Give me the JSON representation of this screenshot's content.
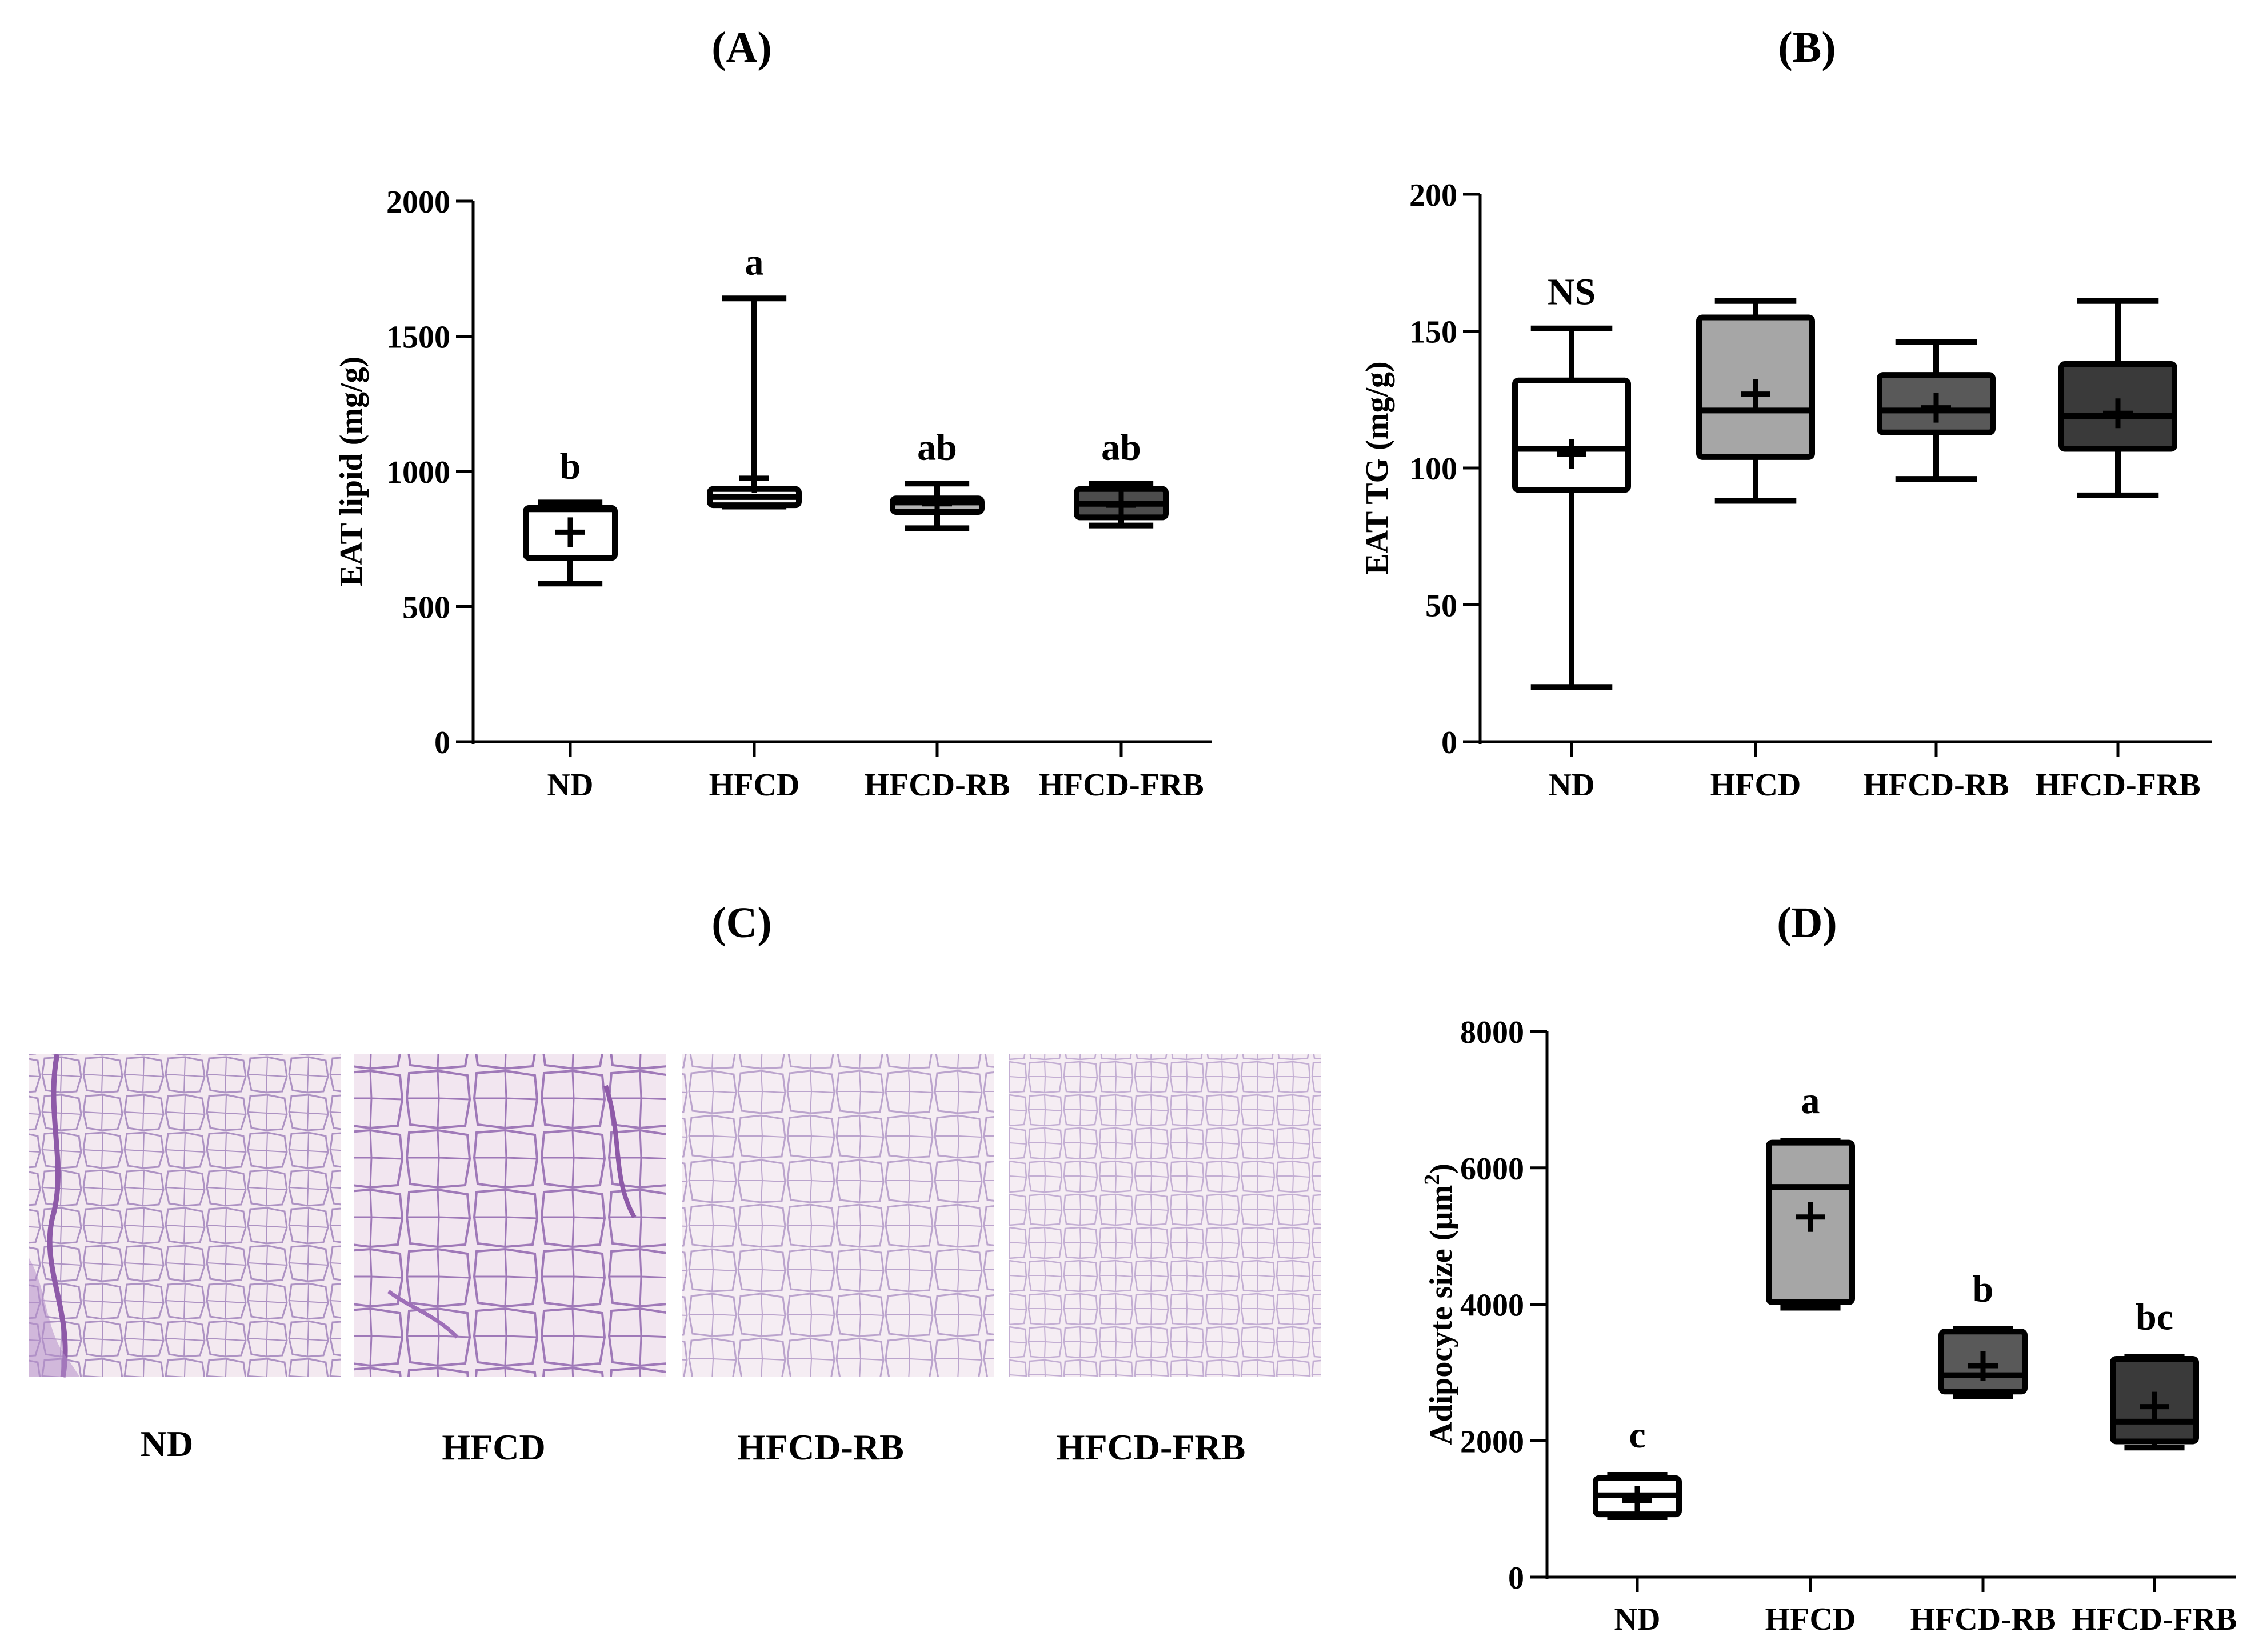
{
  "panels": {
    "A": "(A)",
    "B": "(B)",
    "C": "(C)",
    "D": "(D)"
  },
  "histology": {
    "labels": [
      "ND",
      "HFCD",
      "HFCD-RB",
      "HFCD-FRB"
    ],
    "stain_colors": {
      "background": "#f3e9f0",
      "cell_border": "#a889bf",
      "dense_stain": "#8e5aa8"
    }
  },
  "chart_data": [
    {
      "type": "box",
      "panel": "(A)",
      "ylabel": "EAT lipid (mg/g)",
      "xlabel": "",
      "ylim": [
        0,
        2000
      ],
      "yticks": [
        0,
        500,
        1000,
        1500,
        2000
      ],
      "categories": [
        "ND",
        "HFCD",
        "HFCD-RB",
        "HFCD-FRB"
      ],
      "box_colors": [
        "#ffffff",
        "#f5f5f5",
        "#b3b3b3",
        "#4d4d4d"
      ],
      "boxes": [
        {
          "min": 585,
          "q1": 680,
          "median": 860,
          "q3": 865,
          "max": 885,
          "mean": 775
        },
        {
          "min": 870,
          "q1": 875,
          "median": 905,
          "q3": 935,
          "max": 1640,
          "mean": 975
        },
        {
          "min": 790,
          "q1": 850,
          "median": 885,
          "q3": 900,
          "max": 955,
          "mean": 880
        },
        {
          "min": 800,
          "q1": 830,
          "median": 880,
          "q3": 935,
          "max": 955,
          "mean": 875
        }
      ],
      "annotations": [
        "b",
        "a",
        "ab",
        "ab"
      ]
    },
    {
      "type": "box",
      "panel": "(B)",
      "ylabel": "EAT TG (mg/g)",
      "xlabel": "",
      "ylim": [
        0,
        200
      ],
      "yticks": [
        0,
        50,
        100,
        150,
        200
      ],
      "categories": [
        "ND",
        "HFCD",
        "HFCD-RB",
        "HFCD-FRB"
      ],
      "box_colors": [
        "#ffffff",
        "#a6a6a6",
        "#595959",
        "#3a3a3a"
      ],
      "boxes": [
        {
          "min": 20,
          "q1": 92,
          "median": 107,
          "q3": 132,
          "max": 151,
          "mean": 105
        },
        {
          "min": 88,
          "q1": 104,
          "median": 121,
          "q3": 155,
          "max": 161,
          "mean": 127
        },
        {
          "min": 96,
          "q1": 113,
          "median": 121,
          "q3": 134,
          "max": 146,
          "mean": 122
        },
        {
          "min": 90,
          "q1": 107,
          "median": 119,
          "q3": 138,
          "max": 161,
          "mean": 120
        }
      ],
      "annotations": [
        "NS",
        "",
        "",
        ""
      ]
    },
    {
      "type": "box",
      "panel": "(D)",
      "ylabel": "Adipocyte size (µm",
      "ylabel_sup": "2",
      "ylabel_end": ")",
      "xlabel": "",
      "ylim": [
        0,
        8000
      ],
      "yticks": [
        0,
        2000,
        4000,
        6000,
        8000
      ],
      "categories": [
        "ND",
        "HFCD",
        "HFCD-RB",
        "HFCD-FRB"
      ],
      "box_colors": [
        "#ffffff",
        "#a6a6a6",
        "#595959",
        "#3a3a3a"
      ],
      "boxes": [
        {
          "min": 880,
          "q1": 920,
          "median": 1200,
          "q3": 1450,
          "max": 1500,
          "mean": 1120
        },
        {
          "min": 3950,
          "q1": 4030,
          "median": 5720,
          "q3": 6370,
          "max": 6400,
          "mean": 5280
        },
        {
          "min": 2650,
          "q1": 2720,
          "median": 2960,
          "q3": 3600,
          "max": 3640,
          "mean": 3100
        },
        {
          "min": 1900,
          "q1": 1990,
          "median": 2280,
          "q3": 3200,
          "max": 3230,
          "mean": 2500
        }
      ],
      "annotations": [
        "c",
        "a",
        "b",
        "bc"
      ]
    }
  ]
}
